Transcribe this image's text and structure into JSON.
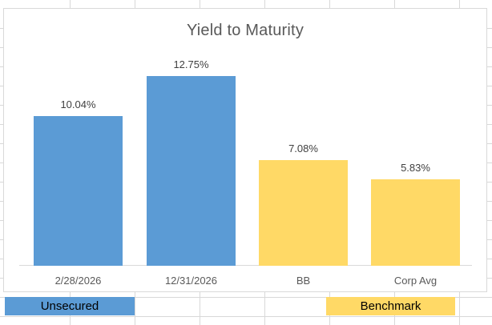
{
  "chart_data": {
    "type": "bar",
    "title": "Yield to Maturity",
    "categories": [
      "2/28/2026",
      "12/31/2026",
      "BB",
      "Corp Avg"
    ],
    "values": [
      10.04,
      12.75,
      7.08,
      5.83
    ],
    "data_labels": [
      "10.04%",
      "12.75%",
      "7.08%",
      "5.83%"
    ],
    "bar_colors": [
      "#5B9BD5",
      "#5B9BD5",
      "#FFD966",
      "#FFD966"
    ],
    "series": [
      {
        "name": "Unsecured",
        "color": "#5B9BD5",
        "categories": [
          "2/28/2026",
          "12/31/2026"
        ],
        "values": [
          10.04,
          12.75
        ]
      },
      {
        "name": "Benchmark",
        "color": "#FFD966",
        "categories": [
          "BB",
          "Corp Avg"
        ],
        "values": [
          7.08,
          5.83
        ]
      }
    ],
    "xlabel": "",
    "ylabel": "",
    "ylim": [
      0,
      14
    ],
    "y_axis_visible": false,
    "gridlines": false,
    "legend_position": "worksheet-cells-below-chart"
  },
  "sheet": {
    "legend_cells": [
      {
        "label": "Unsecured",
        "color": "#5B9BD5"
      },
      {
        "label": "Benchmark",
        "color": "#FFD966"
      }
    ],
    "gridline_color": "#d8d8d8"
  },
  "colors": {
    "bar_blue": "#5B9BD5",
    "bar_yellow": "#FFD966",
    "title_text": "#595959",
    "axis_text": "#595959",
    "data_label_text": "#404040",
    "axis_line": "#d9d9d9",
    "chart_border": "#d9d9d9"
  }
}
